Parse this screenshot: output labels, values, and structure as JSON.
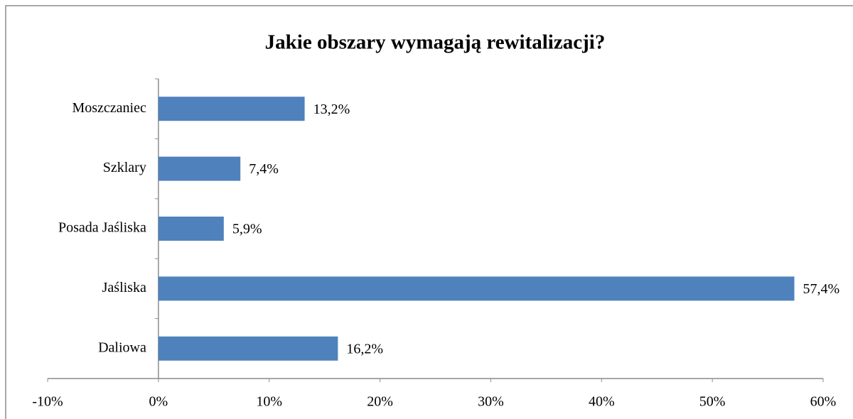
{
  "chart_data": {
    "type": "bar",
    "orientation": "horizontal",
    "title": "Jakie obszary wymagają rewitalizacji?",
    "categories": [
      "Moszczaniec",
      "Szklary",
      "Posada Jaśliska",
      "Jaśliska",
      "Daliowa"
    ],
    "values": [
      13.2,
      7.4,
      5.9,
      57.4,
      16.2
    ],
    "value_labels": [
      "13,2%",
      "7,4%",
      "5,9%",
      "57,4%",
      "16,2%"
    ],
    "color": "#4f81bd",
    "xlim": [
      -10,
      60
    ],
    "xticks": [
      {
        "value": -10,
        "label": "-10%"
      },
      {
        "value": 0,
        "label": "0%"
      },
      {
        "value": 10,
        "label": "10%"
      },
      {
        "value": 20,
        "label": "20%"
      },
      {
        "value": 30,
        "label": "30%"
      },
      {
        "value": 40,
        "label": "40%"
      },
      {
        "value": 50,
        "label": "50%"
      },
      {
        "value": 60,
        "label": "60%"
      }
    ],
    "grid": false
  }
}
